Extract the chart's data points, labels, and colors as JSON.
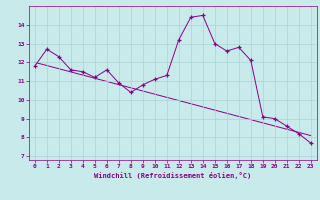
{
  "x": [
    0,
    1,
    2,
    3,
    4,
    5,
    6,
    7,
    8,
    9,
    10,
    11,
    12,
    13,
    14,
    15,
    16,
    17,
    18,
    19,
    20,
    21,
    22,
    23
  ],
  "y": [
    11.8,
    12.7,
    12.3,
    11.6,
    11.5,
    11.2,
    11.6,
    10.9,
    10.4,
    10.8,
    11.1,
    11.3,
    13.2,
    14.4,
    14.5,
    13.0,
    12.6,
    12.8,
    12.1,
    9.1,
    9.0,
    8.6,
    8.2,
    7.7
  ],
  "trend_x": [
    0,
    23
  ],
  "trend_y": [
    12.0,
    8.1
  ],
  "line_color": "#880088",
  "bg_color": "#c8eaea",
  "grid_color": "#aad4d4",
  "xlabel": "Windchill (Refroidissement éolien,°C)",
  "xlim": [
    -0.5,
    23.5
  ],
  "ylim": [
    6.8,
    15.0
  ],
  "yticks": [
    7,
    8,
    9,
    10,
    11,
    12,
    13,
    14
  ],
  "xticks": [
    0,
    1,
    2,
    3,
    4,
    5,
    6,
    7,
    8,
    9,
    10,
    11,
    12,
    13,
    14,
    15,
    16,
    17,
    18,
    19,
    20,
    21,
    22,
    23
  ]
}
